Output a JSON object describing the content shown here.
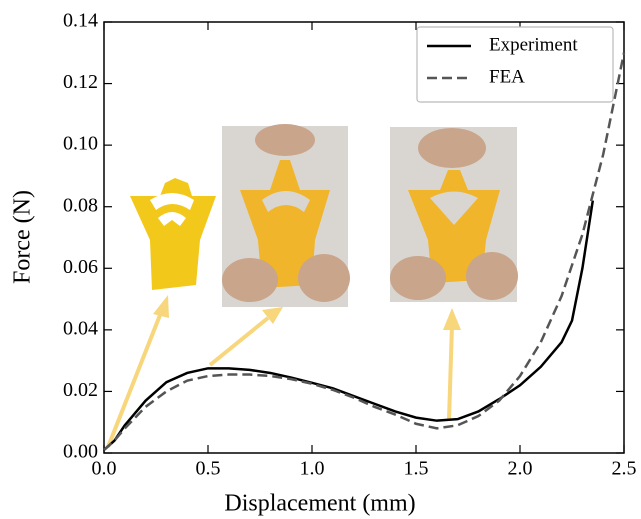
{
  "chart_data": {
    "type": "line",
    "x_label": "Displacement (mm)",
    "y_label": "Force (N)",
    "xlim": [
      0,
      2.5
    ],
    "ylim": [
      0,
      0.14
    ],
    "xticks": [
      {
        "value": 0,
        "label": "0.0"
      },
      {
        "value": 0.5,
        "label": "0.5"
      },
      {
        "value": 1,
        "label": "1.0"
      },
      {
        "value": 1.5,
        "label": "1.5"
      },
      {
        "value": 2,
        "label": "2.0"
      },
      {
        "value": 2.5,
        "label": "2.5"
      }
    ],
    "yticks": [
      {
        "value": 0,
        "label": "0.00"
      },
      {
        "value": 0.02,
        "label": "0.02"
      },
      {
        "value": 0.04,
        "label": "0.04"
      },
      {
        "value": 0.06,
        "label": "0.06"
      },
      {
        "value": 0.08,
        "label": "0.08"
      },
      {
        "value": 0.1,
        "label": "0.10"
      },
      {
        "value": 0.12,
        "label": "0.12"
      },
      {
        "value": 0.14,
        "label": "0.14"
      }
    ],
    "legend": "upper right",
    "series": [
      {
        "name": "Experiment",
        "color": "#000000",
        "dash": "solid",
        "x": [
          0,
          0.05,
          0.1,
          0.2,
          0.3,
          0.4,
          0.5,
          0.6,
          0.7,
          0.8,
          0.9,
          1.0,
          1.1,
          1.2,
          1.3,
          1.4,
          1.5,
          1.6,
          1.7,
          1.8,
          1.9,
          2.0,
          2.1,
          2.2,
          2.25,
          2.3,
          2.35
        ],
        "values": [
          0.001,
          0.004,
          0.009,
          0.017,
          0.023,
          0.026,
          0.0275,
          0.0275,
          0.027,
          0.026,
          0.0245,
          0.0228,
          0.021,
          0.0185,
          0.016,
          0.0135,
          0.0115,
          0.0105,
          0.011,
          0.0135,
          0.0175,
          0.022,
          0.028,
          0.036,
          0.043,
          0.06,
          0.082
        ]
      },
      {
        "name": "FEA",
        "color": "#555555",
        "dash": "dashed",
        "x": [
          0,
          0.05,
          0.1,
          0.2,
          0.3,
          0.4,
          0.5,
          0.6,
          0.7,
          0.8,
          0.9,
          1.0,
          1.1,
          1.2,
          1.3,
          1.4,
          1.5,
          1.6,
          1.7,
          1.8,
          1.9,
          2.0,
          2.1,
          2.2,
          2.3,
          2.4,
          2.5
        ],
        "values": [
          0.001,
          0.004,
          0.008,
          0.015,
          0.02,
          0.0235,
          0.025,
          0.0255,
          0.0255,
          0.025,
          0.024,
          0.0225,
          0.0205,
          0.018,
          0.015,
          0.0125,
          0.0095,
          0.008,
          0.009,
          0.012,
          0.017,
          0.025,
          0.036,
          0.051,
          0.071,
          0.097,
          0.13
        ]
      }
    ]
  }
}
